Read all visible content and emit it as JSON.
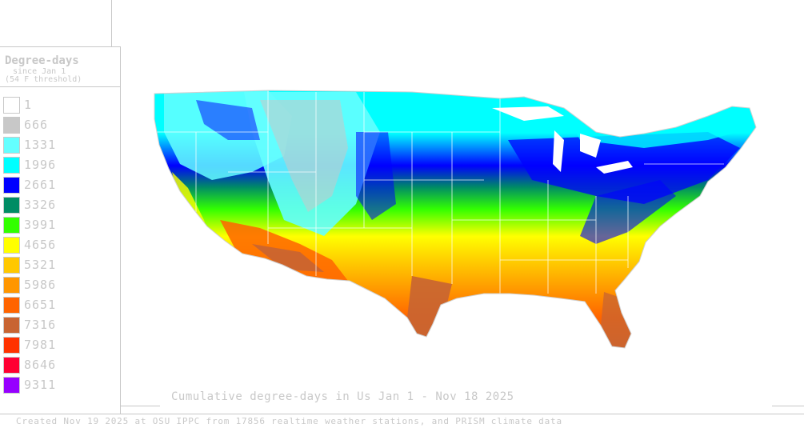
{
  "legend": {
    "title": "Degree-days",
    "subtitle_line1": "since Jan 1",
    "subtitle_line2": "(54 F threshold)",
    "items": [
      {
        "label": "1",
        "color": "#ffffff"
      },
      {
        "label": "666",
        "color": "#c8c8c8"
      },
      {
        "label": "1331",
        "color": "#64ffff"
      },
      {
        "label": "1996",
        "color": "#00ffff"
      },
      {
        "label": "2661",
        "color": "#0000ff"
      },
      {
        "label": "3326",
        "color": "#008c64"
      },
      {
        "label": "3991",
        "color": "#32ff00"
      },
      {
        "label": "4656",
        "color": "#ffff00"
      },
      {
        "label": "5321",
        "color": "#ffc800"
      },
      {
        "label": "5986",
        "color": "#ff9600"
      },
      {
        "label": "6651",
        "color": "#ff6400"
      },
      {
        "label": "7316",
        "color": "#c86432"
      },
      {
        "label": "7981",
        "color": "#ff3200"
      },
      {
        "label": "8646",
        "color": "#ff0032"
      },
      {
        "label": "9311",
        "color": "#9600ff"
      }
    ]
  },
  "map": {
    "title": "Cumulative degree-days in Us  Jan 1 - Nov 18 2025"
  },
  "footer": {
    "credit": "Created Nov 19 2025 at OSU IPPC from 17856 realtime weather stations, and PRISM climate data"
  }
}
